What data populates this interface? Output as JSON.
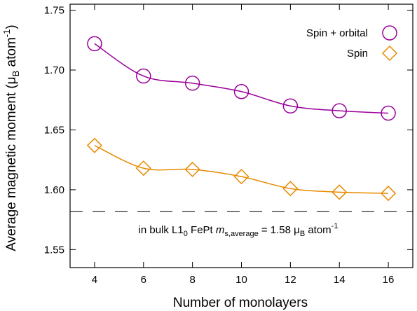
{
  "chart_data": {
    "type": "line",
    "xlabel": "Number of monolayers",
    "ylabel": "Average magnetic moment (μB atom⁻¹)",
    "ylabel_parts": {
      "main": "Average magnetic moment (μ",
      "sub": "B",
      "mid": " atom",
      "sup": "-1",
      "end": ")"
    },
    "xlim": [
      3,
      17
    ],
    "ylim": [
      1.535,
      1.755
    ],
    "xticks": [
      4,
      6,
      8,
      10,
      12,
      14,
      16
    ],
    "yticks": [
      1.55,
      1.6,
      1.65,
      1.7,
      1.75
    ],
    "ytick_labels": [
      "1.55",
      "1.60",
      "1.65",
      "1.70",
      "1.75"
    ],
    "xtick_labels": [
      "4",
      "6",
      "8",
      "10",
      "12",
      "14",
      "16"
    ],
    "legend_position": "top-right",
    "grid": false,
    "x": [
      4,
      6,
      8,
      10,
      12,
      14,
      16
    ],
    "series": [
      {
        "name": "Spin + orbital",
        "values": [
          1.722,
          1.695,
          1.689,
          1.682,
          1.67,
          1.666,
          1.664
        ],
        "color": "#990099",
        "marker": "circle"
      },
      {
        "name": "Spin",
        "values": [
          1.637,
          1.618,
          1.617,
          1.611,
          1.601,
          1.598,
          1.597
        ],
        "color": "#e68a00",
        "marker": "diamond"
      }
    ],
    "reference_line": {
      "y": 1.582,
      "style": "dashed",
      "color": "#000000"
    },
    "annotation": {
      "text": "in bulk L1₀ FePt m s,average = 1.58 μB atom⁻¹",
      "parts": {
        "a": "in bulk L1",
        "a_sub": "0",
        "b": " FePt ",
        "c_italic": "m",
        "c_sub": "s,average",
        "d": " = 1.58 μ",
        "d_sub": "B",
        "e": " atom",
        "e_sup": "-1"
      }
    }
  }
}
